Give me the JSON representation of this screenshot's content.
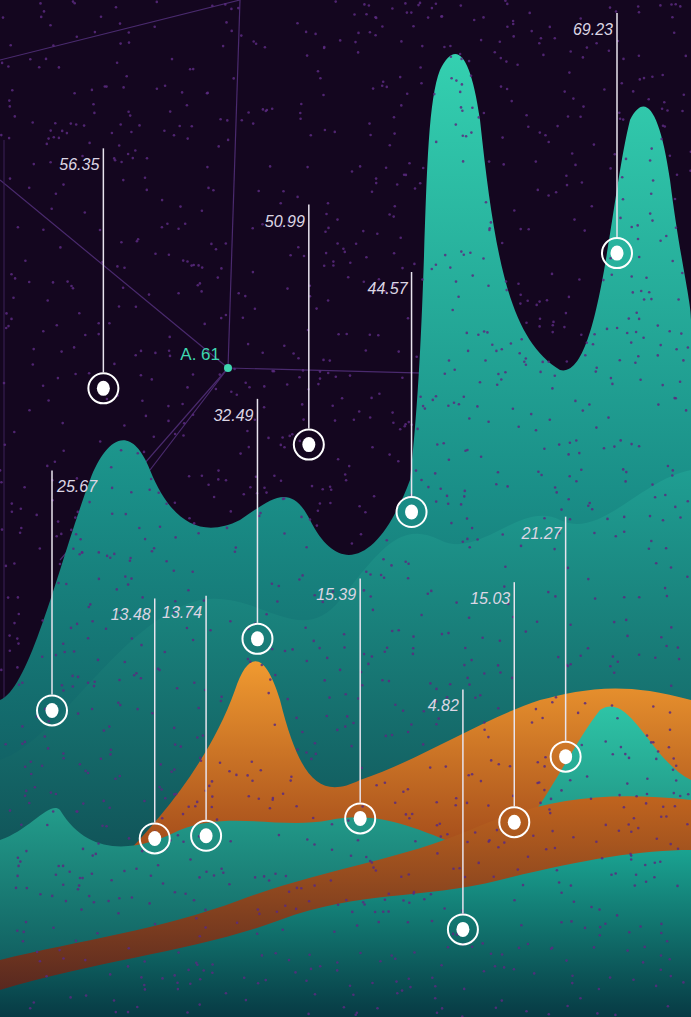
{
  "chart_data": {
    "type": "area",
    "categories": [
      null,
      null,
      null,
      null,
      null,
      null,
      null,
      null,
      null,
      null,
      null,
      null
    ],
    "values": [
      25.67,
      56.35,
      13.48,
      13.74,
      32.49,
      50.99,
      15.39,
      44.57,
      4.82,
      15.03,
      21.27,
      69.23
    ],
    "ylim": [
      0,
      80
    ],
    "data_labels": true,
    "tick_labels": false,
    "annotations": [
      "A. 61"
    ]
  }
}
